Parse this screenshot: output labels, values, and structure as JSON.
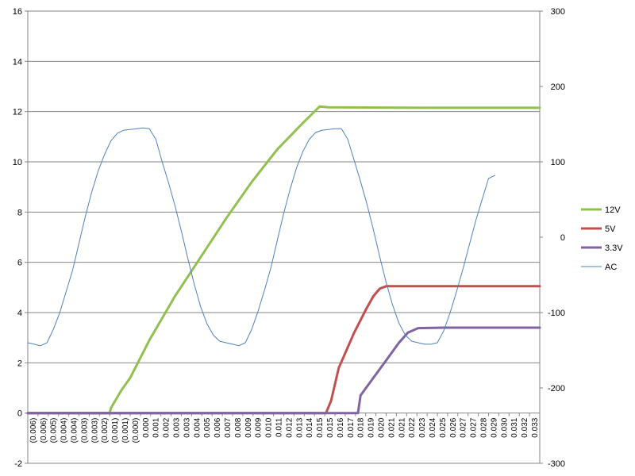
{
  "chart_data": {
    "type": "line",
    "left_axis": {
      "min": -2,
      "max": 16,
      "step": 2
    },
    "right_axis": {
      "min": -300,
      "max": 300,
      "step": 100
    },
    "grid": true,
    "legend_position": "right",
    "x_categories": [
      "(0.006)",
      "(0.006)",
      "(0.005)",
      "(0.004)",
      "(0.004)",
      "(0.003)",
      "(0.003)",
      "(0.002)",
      "(0.001)",
      "(0.001)",
      "(0.000)",
      "0.000",
      "0.001",
      "0.002",
      "0.003",
      "0.003",
      "0.004",
      "0.005",
      "0.006",
      "0.007",
      "0.008",
      "0.009",
      "0.009",
      "0.010",
      "0.011",
      "0.012",
      "0.013",
      "0.014",
      "0.015",
      "0.015",
      "0.016",
      "0.017",
      "0.018",
      "0.019",
      "0.020",
      "0.021",
      "0.021",
      "0.022",
      "0.023",
      "0.024",
      "0.025",
      "0.026",
      "0.027",
      "0.027",
      "0.028",
      "0.029",
      "0.030",
      "0.031",
      "0.032",
      "0.033"
    ],
    "x_range": [
      -0.0065,
      0.0335
    ],
    "series": [
      {
        "name": "12V",
        "axis": "left",
        "color": "#92c050",
        "width": 3,
        "points": [
          [
            -0.0065,
            0
          ],
          [
            -0.0001,
            0
          ],
          [
            0.0,
            0.2
          ],
          [
            0.0008,
            0.9
          ],
          [
            0.0015,
            1.4
          ],
          [
            0.003,
            2.9
          ],
          [
            0.005,
            4.65
          ],
          [
            0.007,
            6.2
          ],
          [
            0.009,
            7.75
          ],
          [
            0.011,
            9.2
          ],
          [
            0.013,
            10.5
          ],
          [
            0.015,
            11.55
          ],
          [
            0.0163,
            12.2
          ],
          [
            0.017,
            12.17
          ],
          [
            0.025,
            12.15
          ],
          [
            0.0335,
            12.15
          ]
        ]
      },
      {
        "name": "5V",
        "axis": "left",
        "color": "#c0504d",
        "width": 3,
        "points": [
          [
            -0.0065,
            0
          ],
          [
            0.0168,
            0
          ],
          [
            0.0172,
            0.5
          ],
          [
            0.0178,
            1.8
          ],
          [
            0.019,
            3.2
          ],
          [
            0.02,
            4.2
          ],
          [
            0.0205,
            4.65
          ],
          [
            0.021,
            4.95
          ],
          [
            0.0215,
            5.05
          ],
          [
            0.025,
            5.05
          ],
          [
            0.0335,
            5.05
          ]
        ]
      },
      {
        "name": "3.3V",
        "axis": "left",
        "color": "#8064a2",
        "width": 3,
        "points": [
          [
            -0.0065,
            0
          ],
          [
            0.0193,
            0
          ],
          [
            0.0195,
            0.7
          ],
          [
            0.0205,
            1.4
          ],
          [
            0.0215,
            2.1
          ],
          [
            0.0225,
            2.8
          ],
          [
            0.0232,
            3.2
          ],
          [
            0.024,
            3.38
          ],
          [
            0.026,
            3.4
          ],
          [
            0.0335,
            3.4
          ]
        ]
      },
      {
        "name": "AC",
        "axis": "right",
        "color": "#4f81bd",
        "width": 1,
        "points": [
          [
            -0.0065,
            -140
          ],
          [
            -0.006,
            -142
          ],
          [
            -0.0055,
            -144
          ],
          [
            -0.005,
            -140
          ],
          [
            -0.0045,
            -122
          ],
          [
            -0.004,
            -100
          ],
          [
            -0.0035,
            -72
          ],
          [
            -0.003,
            -44
          ],
          [
            -0.0025,
            -8
          ],
          [
            -0.002,
            28
          ],
          [
            -0.0015,
            60
          ],
          [
            -0.001,
            88
          ],
          [
            -0.0005,
            110
          ],
          [
            0.0,
            128
          ],
          [
            0.0005,
            138
          ],
          [
            0.001,
            142
          ],
          [
            0.0015,
            143
          ],
          [
            0.002,
            144
          ],
          [
            0.0025,
            145
          ],
          [
            0.003,
            144
          ],
          [
            0.0035,
            130
          ],
          [
            0.004,
            100
          ],
          [
            0.0045,
            72
          ],
          [
            0.005,
            42
          ],
          [
            0.0055,
            8
          ],
          [
            0.006,
            -28
          ],
          [
            0.0065,
            -62
          ],
          [
            0.007,
            -92
          ],
          [
            0.0075,
            -115
          ],
          [
            0.008,
            -130
          ],
          [
            0.0085,
            -138
          ],
          [
            0.009,
            -140
          ],
          [
            0.0095,
            -142
          ],
          [
            0.01,
            -144
          ],
          [
            0.0105,
            -140
          ],
          [
            0.011,
            -122
          ],
          [
            0.0115,
            -98
          ],
          [
            0.012,
            -70
          ],
          [
            0.0125,
            -40
          ],
          [
            0.013,
            -4
          ],
          [
            0.0135,
            32
          ],
          [
            0.014,
            64
          ],
          [
            0.0145,
            92
          ],
          [
            0.015,
            114
          ],
          [
            0.0155,
            130
          ],
          [
            0.016,
            139
          ],
          [
            0.0165,
            142
          ],
          [
            0.017,
            143
          ],
          [
            0.0175,
            144
          ],
          [
            0.018,
            144
          ],
          [
            0.0185,
            130
          ],
          [
            0.019,
            102
          ],
          [
            0.0195,
            74
          ],
          [
            0.02,
            44
          ],
          [
            0.0205,
            10
          ],
          [
            0.021,
            -26
          ],
          [
            0.0215,
            -60
          ],
          [
            0.022,
            -90
          ],
          [
            0.0225,
            -114
          ],
          [
            0.023,
            -130
          ],
          [
            0.0235,
            -138
          ],
          [
            0.024,
            -140
          ],
          [
            0.0245,
            -142
          ],
          [
            0.025,
            -142
          ],
          [
            0.0255,
            -140
          ],
          [
            0.026,
            -124
          ],
          [
            0.0265,
            -100
          ],
          [
            0.027,
            -72
          ],
          [
            0.0275,
            -42
          ],
          [
            0.028,
            -10
          ],
          [
            0.0285,
            22
          ],
          [
            0.029,
            50
          ],
          [
            0.0295,
            78
          ],
          [
            0.03,
            82
          ]
        ]
      }
    ],
    "legend": [
      {
        "label": "12V",
        "color": "#92c050",
        "width": 3
      },
      {
        "label": "5V",
        "color": "#c0504d",
        "width": 3
      },
      {
        "label": "3.3V",
        "color": "#8064a2",
        "width": 3
      },
      {
        "label": "AC",
        "color": "#4f81bd",
        "width": 1
      }
    ]
  }
}
